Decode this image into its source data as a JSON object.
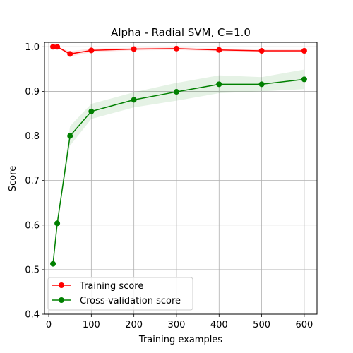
{
  "chart_data": {
    "type": "line",
    "title": "Alpha - Radial SVM, C=1.0",
    "xlabel": "Training examples",
    "ylabel": "Score",
    "xlim": [
      -10,
      630
    ],
    "ylim": [
      0.4,
      1.01
    ],
    "xticks": [
      0,
      100,
      200,
      300,
      400,
      500,
      600
    ],
    "yticks": [
      0.4,
      0.5,
      0.6,
      0.7,
      0.8,
      0.9,
      1.0
    ],
    "xtick_labels": [
      "0",
      "100",
      "200",
      "300",
      "400",
      "500",
      "600"
    ],
    "ytick_labels": [
      "0.4",
      "0.5",
      "0.6",
      "0.7",
      "0.8",
      "0.9",
      "1.0"
    ],
    "grid": true,
    "legend_position": "lower-left",
    "x": [
      10,
      20,
      50,
      100,
      200,
      300,
      400,
      500,
      600
    ],
    "series": [
      {
        "name": "Training score",
        "color": "#ff0000",
        "band_color": "#ff0000",
        "values": [
          1.0,
          1.0,
          0.984,
          0.992,
          0.995,
          0.996,
          0.993,
          0.991,
          0.991
        ],
        "std": [
          0.0,
          0.0,
          0.006,
          0.004,
          0.003,
          0.003,
          0.003,
          0.003,
          0.003
        ]
      },
      {
        "name": "Cross-validation score",
        "color": "#008000",
        "band_color": "#008000",
        "values": [
          0.513,
          0.604,
          0.8,
          0.855,
          0.881,
          0.899,
          0.916,
          0.916,
          0.927
        ],
        "std": [
          0.0,
          0.0,
          0.022,
          0.017,
          0.017,
          0.02,
          0.02,
          0.016,
          0.022
        ]
      }
    ]
  }
}
